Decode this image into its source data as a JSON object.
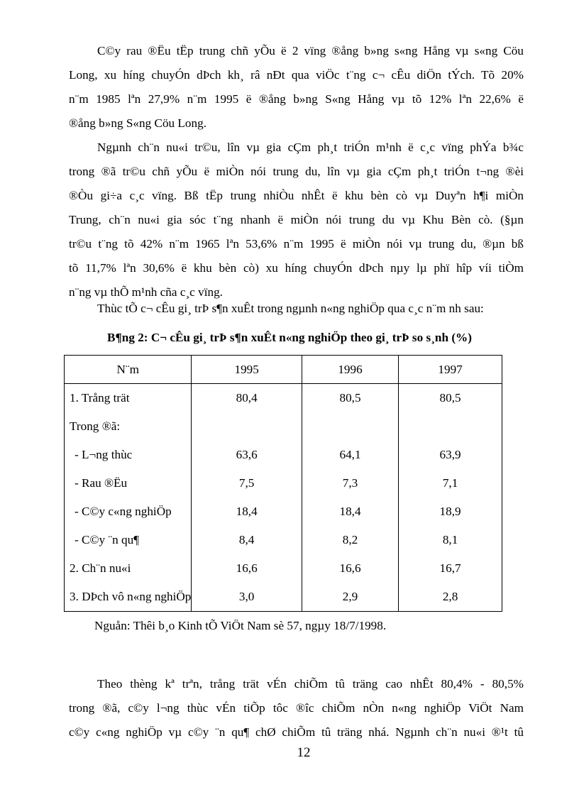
{
  "paragraph1": [
    "C©y rau ®Ëu tËp trung chñ yÕu ë 2 vïng ®ång b»ng s«ng Hång vµ s«ng Cöu",
    "Long, xu h­íng  chuyÓn dÞch kh¸ râ nÐt qua viÖc t¨ng c¬ cÊu diÖn tÝch. Tõ 20%",
    "n¨m 1985 lªn 27,9% n¨m 1995 ë ®ång b»ng S«ng Hång vµ tõ 12% lªn 22,6% ë",
    "®ång b»ng S«ng Cöu Long."
  ],
  "paragraph2": [
    "Ngµnh ch¨n nu«i tr©u, lîn vµ gia cÇm ph¸t triÓn m¹nh ë c¸c vïng phÝa b¾c",
    "trong ®ã tr©u chñ yÕu ë miÒn nói trung du, lîn vµ gia cÇm ph¸t triÓn t­¬ng  ®èi",
    "®Òu gi÷a  c¸c vïng. Bß tËp trung nhiÒu nhÊt ë khu bèn cò vµ Duyªn h¶i miÒn",
    "Trung, ch¨n nu«i gia sóc t¨ng nhanh ë miÒn nói trung du vµ Khu Bèn cò. (§µn",
    "tr©u t¨ng tõ 42% n¨m 1965 lªn 53,6% n¨m 1995 ë miÒn nói vµ trung du, ®µn bß",
    "tõ 11,7% lªn 30,6% ë khu bèn cò) xu h­íng  chuyÓn dÞch nµy lµ phï hîp víi tiÒm",
    "n¨ng vµ thÕ m¹nh cña c¸c vïng."
  ],
  "intro": "Thùc tÕ  c¬ cÊu gi¸ trÞ s¶n xuÊt trong ngµnh n«ng nghiÖp qua c¸c n¨m nh­ sau:",
  "table": {
    "title": "B¶ng 2: C¬ cÊu gi¸ trÞ s¶n xuÊt n«ng nghiÖp theo gi¸ trÞ so s¸nh (%)",
    "headers": [
      "N¨m",
      "1995",
      "1996",
      "1997"
    ],
    "rows": [
      {
        "label": "1. Trång trät",
        "values": [
          "80,4",
          "80,5",
          "80,5"
        ]
      },
      {
        "label": "Trong ®ã:",
        "values": [
          "",
          "",
          ""
        ]
      },
      {
        "label": "- L­¬ng  thùc",
        "values": [
          "63,6",
          "64,1",
          "63,9"
        ]
      },
      {
        "label": "- Rau ®Ëu",
        "values": [
          "7,5",
          "7,3",
          "7,1"
        ]
      },
      {
        "label": "- C©y c«ng nghiÖp",
        "values": [
          "18,4",
          "18,4",
          "18,9"
        ]
      },
      {
        "label": "- C©y ¨n qu¶",
        "values": [
          "8,4",
          "8,2",
          "8,1"
        ]
      },
      {
        "label": "2. Ch¨n nu«i",
        "values": [
          "16,6",
          "16,6",
          "16,7"
        ]
      },
      {
        "label": "3. DÞch vô n«ng nghiÖp",
        "values": [
          "3,0",
          "2,9",
          "2,8"
        ]
      }
    ],
    "source": "Nguån: Thêi b¸o Kinh tÕ ViÖt Nam sè 57, ngµy 18/7/1998."
  },
  "paragraph3": [
    "Theo thèng kª trªn, trång trät vÉn chiÕm tû träng cao nhÊt 80,4% - 80,5%",
    "trong ®ã, c©y l­¬ng  thùc vÉn tiÕp tôc ®­îc chiÕm nÒn n«ng nghiÖp ViÖt Nam",
    "c©y c«ng nghiÖp vµ c©y ¨n qu¶ chØ chiÕm tû träng nhá. Ngµnh ch¨n nu«i ®¹t tû"
  ],
  "page_number": "12"
}
